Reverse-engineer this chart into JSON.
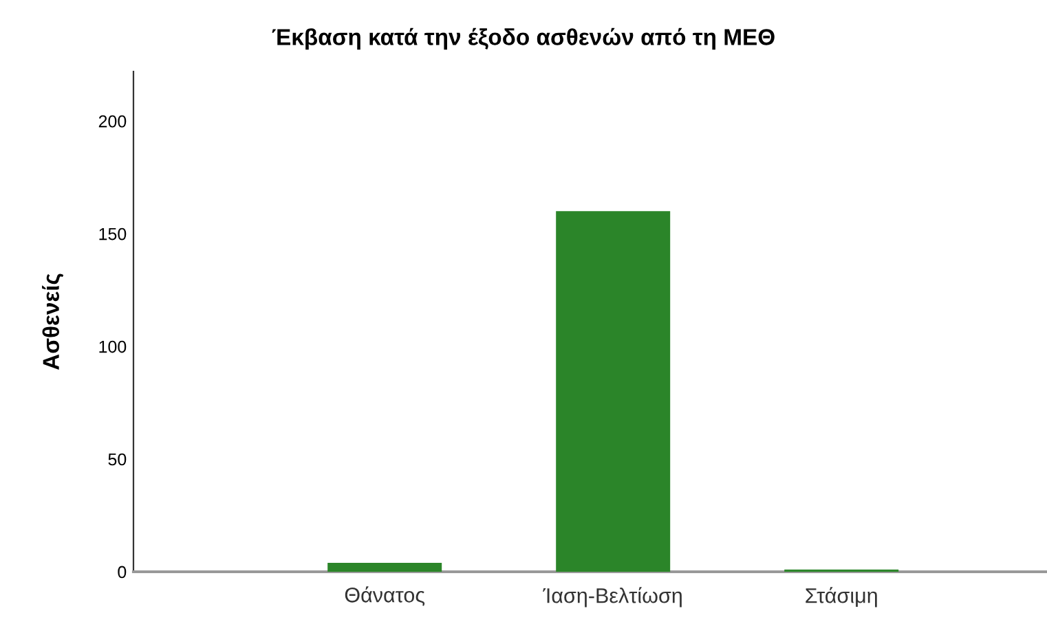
{
  "chart_data": {
    "type": "bar",
    "title": "Έκβαση κατά την έξοδο ασθενών από τη ΜΕΘ",
    "ylabel": "Ασθενείς",
    "categories": [
      "Θάνατος",
      "Ίαση-Βελτίωση",
      "Στάσιμη"
    ],
    "values": [
      4,
      160,
      1
    ],
    "color": "#2b8529",
    "ylim": [
      0,
      222
    ],
    "yticks": [
      0,
      50,
      100,
      150,
      200
    ],
    "grid": false
  }
}
